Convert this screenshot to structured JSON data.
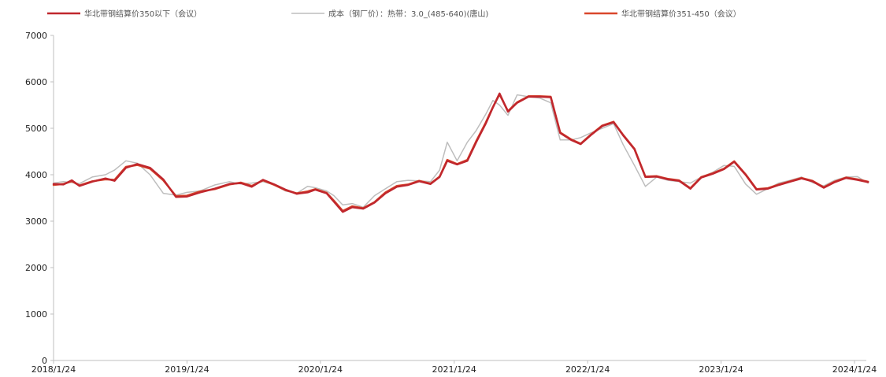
{
  "chart_data": {
    "type": "line",
    "x_axis": {
      "type": "date",
      "tick_labels": [
        "2018/1/24",
        "2019/1/24",
        "2020/1/24",
        "2021/1/24",
        "2022/1/24",
        "2023/1/24",
        "2024/1/24"
      ],
      "range": [
        "2018-01-24",
        "2024-01-24"
      ]
    },
    "y_axis": {
      "range": [
        0,
        7000
      ],
      "ticks": [
        0,
        1000,
        2000,
        3000,
        4000,
        5000,
        6000,
        7000
      ]
    },
    "grid": false,
    "legend_position": "top",
    "series": [
      {
        "name": "华北带钢结算价350以下（会议）",
        "color": "#c0272d",
        "points": [
          [
            "2018-01-24",
            3800
          ],
          [
            "2018-02-20",
            3790
          ],
          [
            "2018-03-15",
            3880
          ],
          [
            "2018-04-05",
            3760
          ],
          [
            "2018-05-10",
            3850
          ],
          [
            "2018-06-15",
            3920
          ],
          [
            "2018-07-10",
            3870
          ],
          [
            "2018-08-10",
            4150
          ],
          [
            "2018-09-10",
            4230
          ],
          [
            "2018-10-15",
            4150
          ],
          [
            "2018-11-20",
            3900
          ],
          [
            "2018-12-25",
            3520
          ],
          [
            "2019-01-24",
            3530
          ],
          [
            "2019-03-01",
            3620
          ],
          [
            "2019-04-10",
            3700
          ],
          [
            "2019-05-20",
            3800
          ],
          [
            "2019-06-20",
            3820
          ],
          [
            "2019-07-20",
            3740
          ],
          [
            "2019-08-20",
            3890
          ],
          [
            "2019-09-20",
            3790
          ],
          [
            "2019-10-20",
            3680
          ],
          [
            "2019-11-20",
            3590
          ],
          [
            "2019-12-20",
            3620
          ],
          [
            "2020-01-10",
            3680
          ],
          [
            "2020-02-10",
            3600
          ],
          [
            "2020-03-01",
            3420
          ],
          [
            "2020-03-25",
            3200
          ],
          [
            "2020-04-20",
            3300
          ],
          [
            "2020-05-20",
            3270
          ],
          [
            "2020-06-20",
            3400
          ],
          [
            "2020-07-20",
            3600
          ],
          [
            "2020-08-20",
            3740
          ],
          [
            "2020-09-20",
            3780
          ],
          [
            "2020-10-20",
            3860
          ],
          [
            "2020-11-20",
            3800
          ],
          [
            "2020-12-15",
            3950
          ],
          [
            "2021-01-05",
            4300
          ],
          [
            "2021-02-01",
            4220
          ],
          [
            "2021-03-01",
            4300
          ],
          [
            "2021-03-25",
            4700
          ],
          [
            "2021-04-20",
            5100
          ],
          [
            "2021-05-10",
            5450
          ],
          [
            "2021-05-28",
            5750
          ],
          [
            "2021-06-20",
            5360
          ],
          [
            "2021-07-15",
            5550
          ],
          [
            "2021-08-15",
            5680
          ],
          [
            "2021-09-15",
            5680
          ],
          [
            "2021-10-15",
            5670
          ],
          [
            "2021-11-10",
            4900
          ],
          [
            "2021-12-10",
            4750
          ],
          [
            "2022-01-05",
            4660
          ],
          [
            "2022-02-01",
            4850
          ],
          [
            "2022-03-05",
            5050
          ],
          [
            "2022-04-05",
            5130
          ],
          [
            "2022-05-01",
            4850
          ],
          [
            "2022-06-01",
            4550
          ],
          [
            "2022-07-01",
            3950
          ],
          [
            "2022-08-01",
            3960
          ],
          [
            "2022-09-01",
            3900
          ],
          [
            "2022-10-01",
            3870
          ],
          [
            "2022-11-01",
            3700
          ],
          [
            "2022-12-01",
            3940
          ],
          [
            "2023-01-01",
            4020
          ],
          [
            "2023-02-01",
            4120
          ],
          [
            "2023-03-01",
            4280
          ],
          [
            "2023-04-01",
            4000
          ],
          [
            "2023-05-01",
            3680
          ],
          [
            "2023-06-01",
            3700
          ],
          [
            "2023-07-01",
            3780
          ],
          [
            "2023-08-01",
            3850
          ],
          [
            "2023-09-01",
            3920
          ],
          [
            "2023-10-01",
            3860
          ],
          [
            "2023-11-01",
            3720
          ],
          [
            "2023-12-01",
            3840
          ],
          [
            "2024-01-01",
            3930
          ],
          [
            "2024-02-01",
            3890
          ],
          [
            "2024-03-01",
            3840
          ]
        ]
      },
      {
        "name": "成本（钢厂价）：热带：3.0_(485-640)(唐山)",
        "color": "#bdbdbd",
        "points": [
          [
            "2018-01-24",
            3820
          ],
          [
            "2018-02-20",
            3850
          ],
          [
            "2018-03-15",
            3830
          ],
          [
            "2018-04-05",
            3810
          ],
          [
            "2018-05-10",
            3950
          ],
          [
            "2018-06-15",
            4000
          ],
          [
            "2018-07-10",
            4100
          ],
          [
            "2018-08-10",
            4300
          ],
          [
            "2018-09-10",
            4250
          ],
          [
            "2018-10-15",
            4000
          ],
          [
            "2018-11-20",
            3600
          ],
          [
            "2018-12-25",
            3560
          ],
          [
            "2019-01-24",
            3620
          ],
          [
            "2019-03-01",
            3650
          ],
          [
            "2019-04-10",
            3780
          ],
          [
            "2019-05-20",
            3850
          ],
          [
            "2019-06-20",
            3800
          ],
          [
            "2019-07-20",
            3820
          ],
          [
            "2019-08-20",
            3850
          ],
          [
            "2019-09-20",
            3780
          ],
          [
            "2019-10-20",
            3650
          ],
          [
            "2019-11-20",
            3600
          ],
          [
            "2019-12-20",
            3750
          ],
          [
            "2020-01-10",
            3720
          ],
          [
            "2020-02-10",
            3650
          ],
          [
            "2020-03-01",
            3550
          ],
          [
            "2020-03-25",
            3350
          ],
          [
            "2020-04-20",
            3380
          ],
          [
            "2020-05-20",
            3300
          ],
          [
            "2020-06-20",
            3550
          ],
          [
            "2020-07-20",
            3700
          ],
          [
            "2020-08-20",
            3850
          ],
          [
            "2020-09-20",
            3880
          ],
          [
            "2020-10-20",
            3870
          ],
          [
            "2020-11-20",
            3850
          ],
          [
            "2020-12-15",
            4100
          ],
          [
            "2021-01-05",
            4700
          ],
          [
            "2021-02-01",
            4300
          ],
          [
            "2021-03-01",
            4700
          ],
          [
            "2021-03-25",
            4950
          ],
          [
            "2021-04-20",
            5300
          ],
          [
            "2021-05-10",
            5600
          ],
          [
            "2021-05-28",
            5500
          ],
          [
            "2021-06-20",
            5280
          ],
          [
            "2021-07-15",
            5720
          ],
          [
            "2021-08-15",
            5680
          ],
          [
            "2021-09-15",
            5650
          ],
          [
            "2021-10-15",
            5550
          ],
          [
            "2021-11-10",
            4750
          ],
          [
            "2021-12-10",
            4750
          ],
          [
            "2022-01-05",
            4800
          ],
          [
            "2022-02-01",
            4900
          ],
          [
            "2022-03-05",
            5000
          ],
          [
            "2022-04-05",
            5100
          ],
          [
            "2022-05-01",
            4650
          ],
          [
            "2022-06-01",
            4200
          ],
          [
            "2022-07-01",
            3750
          ],
          [
            "2022-08-01",
            3950
          ],
          [
            "2022-09-01",
            3880
          ],
          [
            "2022-10-01",
            3850
          ],
          [
            "2022-11-01",
            3820
          ],
          [
            "2022-12-01",
            3950
          ],
          [
            "2023-01-01",
            4050
          ],
          [
            "2023-02-01",
            4200
          ],
          [
            "2023-03-01",
            4180
          ],
          [
            "2023-04-01",
            3800
          ],
          [
            "2023-05-01",
            3580
          ],
          [
            "2023-06-01",
            3700
          ],
          [
            "2023-07-01",
            3820
          ],
          [
            "2023-08-01",
            3880
          ],
          [
            "2023-09-01",
            3950
          ],
          [
            "2023-10-01",
            3830
          ],
          [
            "2023-11-01",
            3760
          ],
          [
            "2023-12-01",
            3880
          ],
          [
            "2024-01-01",
            3950
          ],
          [
            "2024-02-01",
            3960
          ],
          [
            "2024-03-01",
            3820
          ]
        ]
      },
      {
        "name": "华北带钢结算价351-450（会议）",
        "color": "#d9472b",
        "points": [
          [
            "2018-01-24",
            3780
          ],
          [
            "2018-02-20",
            3800
          ],
          [
            "2018-03-15",
            3860
          ],
          [
            "2018-04-05",
            3770
          ],
          [
            "2018-05-10",
            3860
          ],
          [
            "2018-06-15",
            3900
          ],
          [
            "2018-07-10",
            3890
          ],
          [
            "2018-08-10",
            4170
          ],
          [
            "2018-09-10",
            4210
          ],
          [
            "2018-10-15",
            4130
          ],
          [
            "2018-11-20",
            3880
          ],
          [
            "2018-12-25",
            3540
          ],
          [
            "2019-01-24",
            3550
          ],
          [
            "2019-03-01",
            3640
          ],
          [
            "2019-04-10",
            3690
          ],
          [
            "2019-05-20",
            3790
          ],
          [
            "2019-06-20",
            3830
          ],
          [
            "2019-07-20",
            3760
          ],
          [
            "2019-08-20",
            3880
          ],
          [
            "2019-09-20",
            3780
          ],
          [
            "2019-10-20",
            3670
          ],
          [
            "2019-11-20",
            3600
          ],
          [
            "2019-12-20",
            3640
          ],
          [
            "2020-01-10",
            3690
          ],
          [
            "2020-02-10",
            3610
          ],
          [
            "2020-03-01",
            3440
          ],
          [
            "2020-03-25",
            3220
          ],
          [
            "2020-04-20",
            3320
          ],
          [
            "2020-05-20",
            3280
          ],
          [
            "2020-06-20",
            3410
          ],
          [
            "2020-07-20",
            3620
          ],
          [
            "2020-08-20",
            3760
          ],
          [
            "2020-09-20",
            3790
          ],
          [
            "2020-10-20",
            3870
          ],
          [
            "2020-11-20",
            3810
          ],
          [
            "2020-12-15",
            3960
          ],
          [
            "2021-01-05",
            4320
          ],
          [
            "2021-02-01",
            4230
          ],
          [
            "2021-03-01",
            4320
          ],
          [
            "2021-03-25",
            4720
          ],
          [
            "2021-04-20",
            5120
          ],
          [
            "2021-05-10",
            5460
          ],
          [
            "2021-05-28",
            5730
          ],
          [
            "2021-06-20",
            5370
          ],
          [
            "2021-07-15",
            5560
          ],
          [
            "2021-08-15",
            5690
          ],
          [
            "2021-09-15",
            5690
          ],
          [
            "2021-10-15",
            5680
          ],
          [
            "2021-11-10",
            4910
          ],
          [
            "2021-12-10",
            4760
          ],
          [
            "2022-01-05",
            4670
          ],
          [
            "2022-02-01",
            4860
          ],
          [
            "2022-03-05",
            5060
          ],
          [
            "2022-04-05",
            5140
          ],
          [
            "2022-05-01",
            4860
          ],
          [
            "2022-06-01",
            4560
          ],
          [
            "2022-07-01",
            3960
          ],
          [
            "2022-08-01",
            3970
          ],
          [
            "2022-09-01",
            3910
          ],
          [
            "2022-10-01",
            3880
          ],
          [
            "2022-11-01",
            3710
          ],
          [
            "2022-12-01",
            3950
          ],
          [
            "2023-01-01",
            4030
          ],
          [
            "2023-02-01",
            4130
          ],
          [
            "2023-03-01",
            4290
          ],
          [
            "2023-04-01",
            4010
          ],
          [
            "2023-05-01",
            3690
          ],
          [
            "2023-06-01",
            3710
          ],
          [
            "2023-07-01",
            3790
          ],
          [
            "2023-08-01",
            3860
          ],
          [
            "2023-09-01",
            3930
          ],
          [
            "2023-10-01",
            3870
          ],
          [
            "2023-11-01",
            3730
          ],
          [
            "2023-12-01",
            3850
          ],
          [
            "2024-01-01",
            3940
          ],
          [
            "2024-02-01",
            3900
          ],
          [
            "2024-03-01",
            3850
          ]
        ]
      }
    ]
  }
}
